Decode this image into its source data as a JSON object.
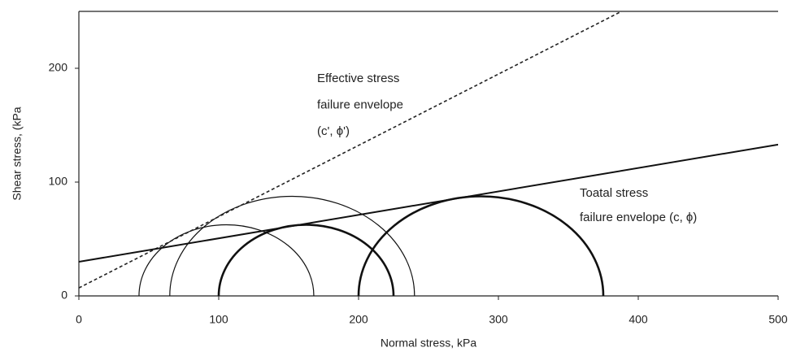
{
  "chart_data": {
    "type": "mohr",
    "x_label": "Normal stress, kPa",
    "y_label": "Shear stress, (kPa",
    "xlim": [
      0,
      500
    ],
    "xticks": [
      0,
      100,
      200,
      300,
      400,
      500
    ],
    "ylim": [
      0,
      250
    ],
    "yticks": [
      0,
      100,
      200
    ],
    "series": [
      {
        "name": "Effective stress failure envelope",
        "x": [
          0,
          388
        ],
        "y": [
          7,
          250
        ],
        "color": "#222222",
        "dashed": true
      },
      {
        "name": "Total stress failure envelope",
        "x": [
          0,
          500
        ],
        "y": [
          30,
          133
        ],
        "color": "#111111",
        "dashed": false
      }
    ],
    "circles": [
      {
        "sigma3": 43,
        "sigma1": 168,
        "thick": false
      },
      {
        "sigma3": 65,
        "sigma1": 240,
        "thick": false
      },
      {
        "sigma3": 100,
        "sigma1": 225,
        "thick": true
      },
      {
        "sigma3": 200,
        "sigma1": 375,
        "thick": true
      }
    ],
    "annotations": [
      {
        "lines": [
          "Effective stress",
          "failure envelope",
          "(c', ϕ')"
        ]
      },
      {
        "lines": [
          "Toatal stress",
          "failure envelope (c, ϕ)"
        ]
      }
    ]
  }
}
